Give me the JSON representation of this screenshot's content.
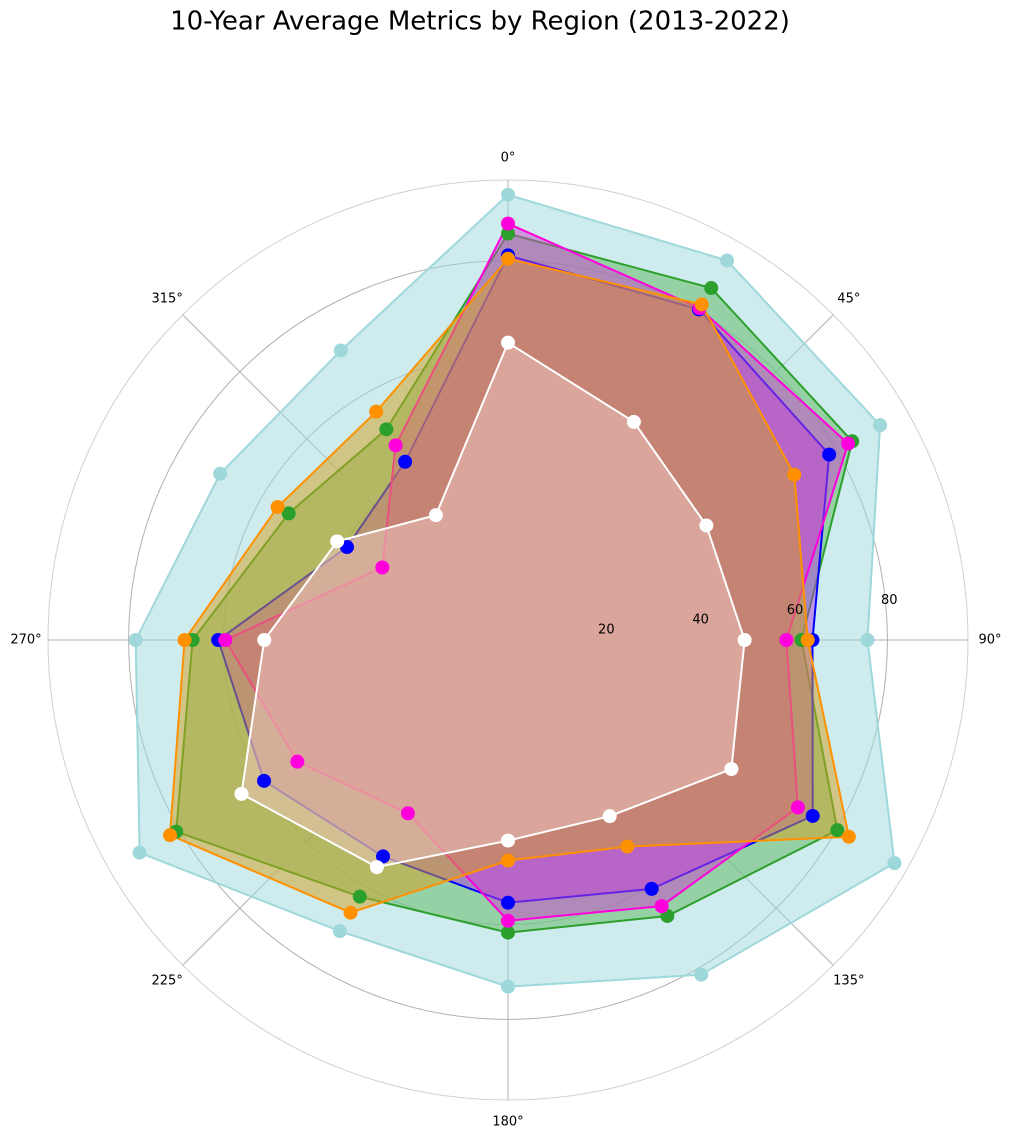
{
  "chart_data": {
    "type": "radar",
    "title": "10-Year Average Metrics by Region (2013-2022)",
    "theta": [
      0,
      30,
      60,
      90,
      120,
      150,
      180,
      210,
      240,
      270,
      300,
      330
    ],
    "rlim": [
      0,
      97
    ],
    "rticks": [
      20,
      40,
      60,
      80
    ],
    "thetaticks": [
      {
        "value": 0,
        "label": "0°"
      },
      {
        "value": 45,
        "label": "45°"
      },
      {
        "value": 90,
        "label": "90°"
      },
      {
        "value": 135,
        "label": "135°"
      },
      {
        "value": 180,
        "label": "180°"
      },
      {
        "value": 225,
        "label": "225°"
      },
      {
        "value": 270,
        "label": "270°"
      },
      {
        "value": 315,
        "label": "315°"
      }
    ],
    "grid": true,
    "series": [
      {
        "color": "#9ed8db",
        "fill": "#9ed8db",
        "values": [
          93.9,
          92.4,
          90.6,
          75.8,
          94.1,
          81.5,
          73.1,
          70.9,
          89.7,
          78.5,
          70.1,
          70.5
        ]
      },
      {
        "color": "#2ca02c",
        "fill": "#5cb85c",
        "values": [
          85.7,
          85.7,
          83.8,
          61.9,
          80.2,
          67.2,
          61.7,
          62.5,
          80.8,
          66.5,
          53.4,
          51.3
        ]
      },
      {
        "color": "#0000ff",
        "fill": "#b040e0",
        "values": [
          81.1,
          80.5,
          78.2,
          64.2,
          74.2,
          60.6,
          55.4,
          52.7,
          59.4,
          61.1,
          39.2,
          43.4
        ]
      },
      {
        "color": "#ff00dd",
        "fill": "#cc44cc",
        "values": [
          87.8,
          80.8,
          82.8,
          58.7,
          70.6,
          64.8,
          59.2,
          42.2,
          51.3,
          59.6,
          30.6,
          47.4
        ]
      },
      {
        "color": "#ff9100",
        "fill": "#d4a020",
        "values": [
          80.4,
          81.7,
          69.7,
          63.2,
          83.0,
          50.3,
          46.5,
          66.4,
          82.3,
          68.2,
          56.1,
          55.6
        ]
      },
      {
        "color": "#ffffff",
        "fill": "#f0c8c4",
        "values": [
          62.7,
          53.1,
          48.3,
          49.9,
          54.4,
          42.9,
          42.3,
          55.3,
          64.9,
          51.4,
          41.6,
          30.4
        ]
      }
    ]
  }
}
